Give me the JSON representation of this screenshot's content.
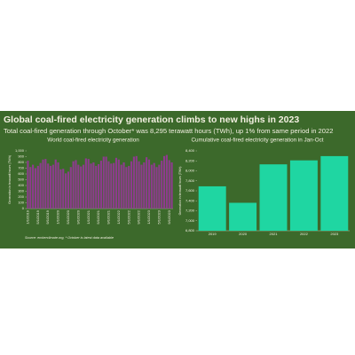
{
  "header": {
    "title": "Global coal-fired electricity generation climbs to new highs in 2023",
    "subtitle": "Total coal-fired generation through October* was 8,295 terawatt hours (TWh), up 1% from same period in 2022"
  },
  "source": "Source: emberclimate.org, * October is latest data available",
  "chart_data": [
    {
      "type": "bar",
      "title": "World coal-fired electricity generation",
      "y_label": "Generation in terawatt hours (TWh)",
      "color": "#8e3b8e",
      "categories": [
        "1/1/2019",
        null,
        null,
        null,
        "5/1/2019",
        null,
        null,
        null,
        "9/1/2019",
        null,
        null,
        null,
        "1/1/2020",
        null,
        null,
        null,
        "5/1/2020",
        null,
        null,
        null,
        "9/1/2020",
        null,
        null,
        null,
        "1/1/2021",
        null,
        null,
        null,
        "5/1/2021",
        null,
        null,
        null,
        "9/1/2021",
        null,
        null,
        null,
        "1/1/2022",
        null,
        null,
        null,
        "5/1/2022",
        null,
        null,
        null,
        "9/1/2022",
        null,
        null,
        null,
        "1/1/2023",
        null,
        null,
        null,
        "5/1/2023",
        null,
        null,
        null,
        "9/1/2023",
        null
      ],
      "values": [
        830,
        720,
        760,
        700,
        740,
        790,
        850,
        860,
        780,
        740,
        760,
        850,
        800,
        680,
        690,
        610,
        640,
        720,
        820,
        840,
        760,
        730,
        760,
        870,
        860,
        780,
        800,
        740,
        770,
        830,
        900,
        900,
        820,
        780,
        790,
        880,
        850,
        760,
        800,
        720,
        740,
        820,
        900,
        910,
        820,
        760,
        800,
        890,
        850,
        760,
        790,
        720,
        760,
        830,
        910,
        930,
        840,
        800
      ],
      "ylim": [
        0,
        1000
      ],
      "yticks": [
        0,
        100,
        200,
        300,
        400,
        500,
        600,
        700,
        800,
        900,
        {
          "value": 1000,
          "label": "1,000"
        }
      ]
    },
    {
      "type": "bar",
      "title": "Cumulative coal-fired electricity generation in Jan-Oct",
      "y_label": "Generation in terawatt hours (TWh)",
      "color": "#1fd6a2",
      "categories": [
        "2019",
        "2020",
        "2021",
        "2022",
        "2023"
      ],
      "values": [
        7690,
        7360,
        8130,
        8210,
        8295
      ],
      "ylim": [
        6800,
        8400
      ],
      "yticks": [
        {
          "value": 6800,
          "label": "6,800"
        },
        {
          "value": 7000,
          "label": "7,000"
        },
        {
          "value": 7200,
          "label": "7,200"
        },
        {
          "value": 7400,
          "label": "7,400"
        },
        {
          "value": 7600,
          "label": "7,600"
        },
        {
          "value": 7800,
          "label": "7,800"
        },
        {
          "value": 8000,
          "label": "8,000"
        },
        {
          "value": 8200,
          "label": "8,200"
        },
        {
          "value": 8400,
          "label": "8,400"
        }
      ]
    }
  ]
}
